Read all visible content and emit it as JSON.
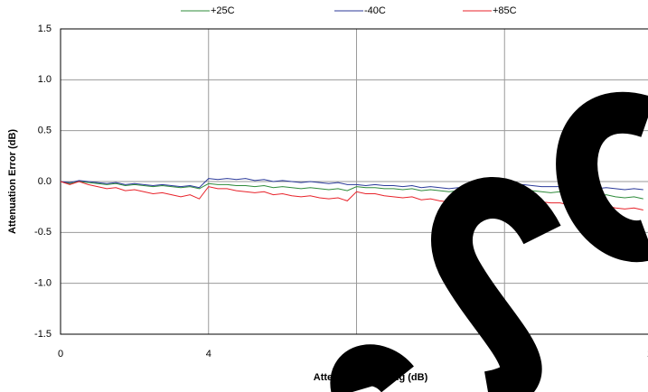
{
  "chart_data": {
    "type": "line",
    "x_label": "Attenuation Setting (dB)",
    "y_label": "Attenuation Error (dB)",
    "x": [
      0,
      0.25,
      0.5,
      0.75,
      1,
      1.25,
      1.5,
      1.75,
      2,
      2.25,
      2.5,
      2.75,
      3,
      3.25,
      3.5,
      3.75,
      4,
      4.25,
      4.5,
      4.75,
      5,
      5.25,
      5.5,
      5.75,
      6,
      6.25,
      6.5,
      6.75,
      7,
      7.25,
      7.5,
      7.75,
      8,
      8.25,
      8.5,
      8.75,
      9,
      9.25,
      9.5,
      9.75,
      10,
      10.25,
      10.5,
      10.75,
      11,
      11.25,
      11.5,
      11.75,
      12,
      12.25,
      12.5,
      12.75,
      13,
      13.25,
      13.5,
      13.75,
      14,
      14.25,
      14.5,
      14.75,
      15,
      15.25,
      15.5,
      15.75
    ],
    "series": [
      {
        "name": "+25C",
        "color": "#2e8b3a",
        "values": [
          0,
          -0.02,
          0.0,
          -0.01,
          -0.02,
          -0.03,
          -0.02,
          -0.04,
          -0.03,
          -0.04,
          -0.05,
          -0.04,
          -0.05,
          -0.06,
          -0.05,
          -0.07,
          -0.02,
          -0.03,
          -0.03,
          -0.04,
          -0.04,
          -0.05,
          -0.04,
          -0.06,
          -0.05,
          -0.06,
          -0.07,
          -0.06,
          -0.07,
          -0.08,
          -0.07,
          -0.09,
          -0.05,
          -0.06,
          -0.06,
          -0.07,
          -0.07,
          -0.08,
          -0.07,
          -0.09,
          -0.08,
          -0.09,
          -0.1,
          -0.09,
          -0.1,
          -0.11,
          -0.1,
          -0.12,
          -0.06,
          -0.08,
          -0.08,
          -0.09,
          -0.1,
          -0.11,
          -0.1,
          -0.12,
          -0.11,
          -0.13,
          -0.14,
          -0.13,
          -0.15,
          -0.16,
          -0.15,
          -0.17
        ]
      },
      {
        "name": "-40C",
        "color": "#2b3a9a",
        "values": [
          0,
          -0.01,
          0.01,
          0,
          -0.01,
          -0.02,
          -0.01,
          -0.03,
          -0.02,
          -0.03,
          -0.04,
          -0.03,
          -0.04,
          -0.05,
          -0.04,
          -0.06,
          0.03,
          0.02,
          0.03,
          0.02,
          0.03,
          0.01,
          0.02,
          0.0,
          0.01,
          0.0,
          -0.01,
          0.0,
          -0.01,
          -0.02,
          -0.01,
          -0.03,
          -0.03,
          -0.04,
          -0.03,
          -0.04,
          -0.04,
          -0.05,
          -0.04,
          -0.06,
          -0.05,
          -0.06,
          -0.07,
          -0.06,
          -0.07,
          -0.08,
          -0.07,
          -0.09,
          -0.02,
          -0.03,
          -0.03,
          -0.04,
          -0.05,
          -0.05,
          -0.05,
          -0.06,
          -0.06,
          -0.07,
          -0.07,
          -0.06,
          -0.07,
          -0.08,
          -0.07,
          -0.08
        ]
      },
      {
        "name": "+85C",
        "color": "#e8222a",
        "values": [
          0,
          -0.03,
          0.0,
          -0.03,
          -0.05,
          -0.07,
          -0.06,
          -0.09,
          -0.08,
          -0.1,
          -0.12,
          -0.11,
          -0.13,
          -0.15,
          -0.13,
          -0.17,
          -0.05,
          -0.07,
          -0.07,
          -0.09,
          -0.1,
          -0.11,
          -0.1,
          -0.13,
          -0.12,
          -0.14,
          -0.15,
          -0.14,
          -0.16,
          -0.17,
          -0.16,
          -0.19,
          -0.1,
          -0.12,
          -0.12,
          -0.14,
          -0.15,
          -0.16,
          -0.15,
          -0.18,
          -0.17,
          -0.19,
          -0.2,
          -0.19,
          -0.21,
          -0.23,
          -0.22,
          -0.25,
          -0.15,
          -0.17,
          -0.17,
          -0.19,
          -0.2,
          -0.21,
          -0.21,
          -0.23,
          -0.22,
          -0.24,
          -0.25,
          -0.24,
          -0.26,
          -0.27,
          -0.26,
          -0.28
        ]
      }
    ],
    "xlim": [
      0,
      16
    ],
    "xticks": [
      0,
      4,
      8,
      12,
      16
    ],
    "ylim": [
      -1.5,
      1.5
    ],
    "yticks": [
      -1.5,
      {
        "value": -1,
        "label": "-1.0"
      },
      -0.5,
      {
        "value": 0,
        "label": "0.0"
      },
      0.5,
      {
        "value": 1,
        "label": "1.0"
      },
      1.5
    ],
    "grid": true,
    "legend": "top"
  }
}
